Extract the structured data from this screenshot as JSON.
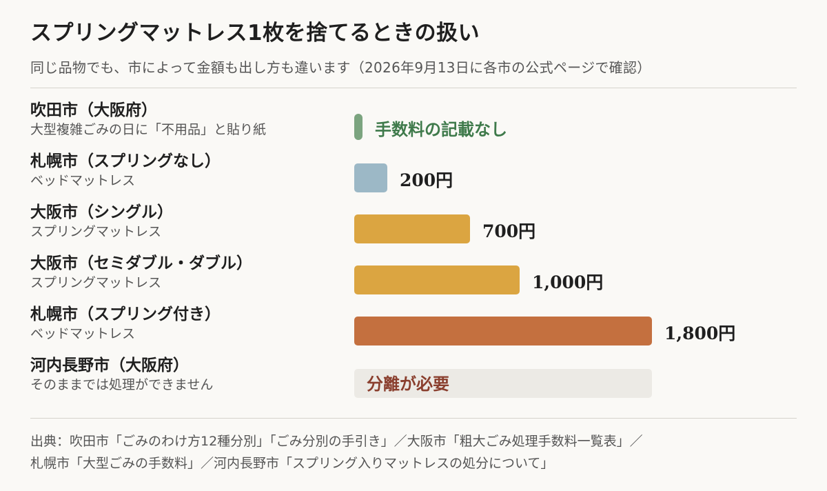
{
  "title": "スプリングマットレス1枚を捨てるときの扱い",
  "subtitle": "同じ品物でも、市によって金額も出し方も違います（2026年9月13日に各市の公式ページで確認）",
  "colors": {
    "low": "#9cb8c6",
    "mid": "#dba541",
    "high": "#c4703f",
    "none_marker": "#7ba47f",
    "none_text": "#3f7a4b",
    "sep_text": "#8a3f2e",
    "sep_strip": "#eceae5"
  },
  "chart_data": {
    "type": "bar",
    "orientation": "horizontal",
    "xlim": [
      0,
      1800
    ],
    "unit": "円",
    "rows": [
      {
        "name": "吹田市（大阪府）",
        "note": "大型複雑ごみの日に「不用品」と貼り紙",
        "value": null,
        "label": "手数料の記載なし",
        "kind": "none"
      },
      {
        "name": "札幌市（スプリングなし）",
        "note": "ベッドマットレス",
        "value": 200,
        "label": "200円",
        "kind": "low"
      },
      {
        "name": "大阪市（シングル）",
        "note": "スプリングマットレス",
        "value": 700,
        "label": "700円",
        "kind": "mid"
      },
      {
        "name": "大阪市（セミダブル・ダブル）",
        "note": "スプリングマットレス",
        "value": 1000,
        "label": "1,000円",
        "kind": "mid"
      },
      {
        "name": "札幌市（スプリング付き）",
        "note": "ベッドマットレス",
        "value": 1800,
        "label": "1,800円",
        "kind": "high"
      },
      {
        "name": "河内長野市（大阪府）",
        "note": "そのままでは処理ができません",
        "value": null,
        "label": "分離が必要",
        "kind": "separate"
      }
    ]
  },
  "source": {
    "line1": "出典：吹田市「ごみのわけ方12種分別」「ごみ分別の手引き」／大阪市「粗大ごみ処理手数料一覧表」／",
    "line2": "札幌市「大型ごみの手数料」／河内長野市「スプリング入りマットレスの処分について」"
  }
}
